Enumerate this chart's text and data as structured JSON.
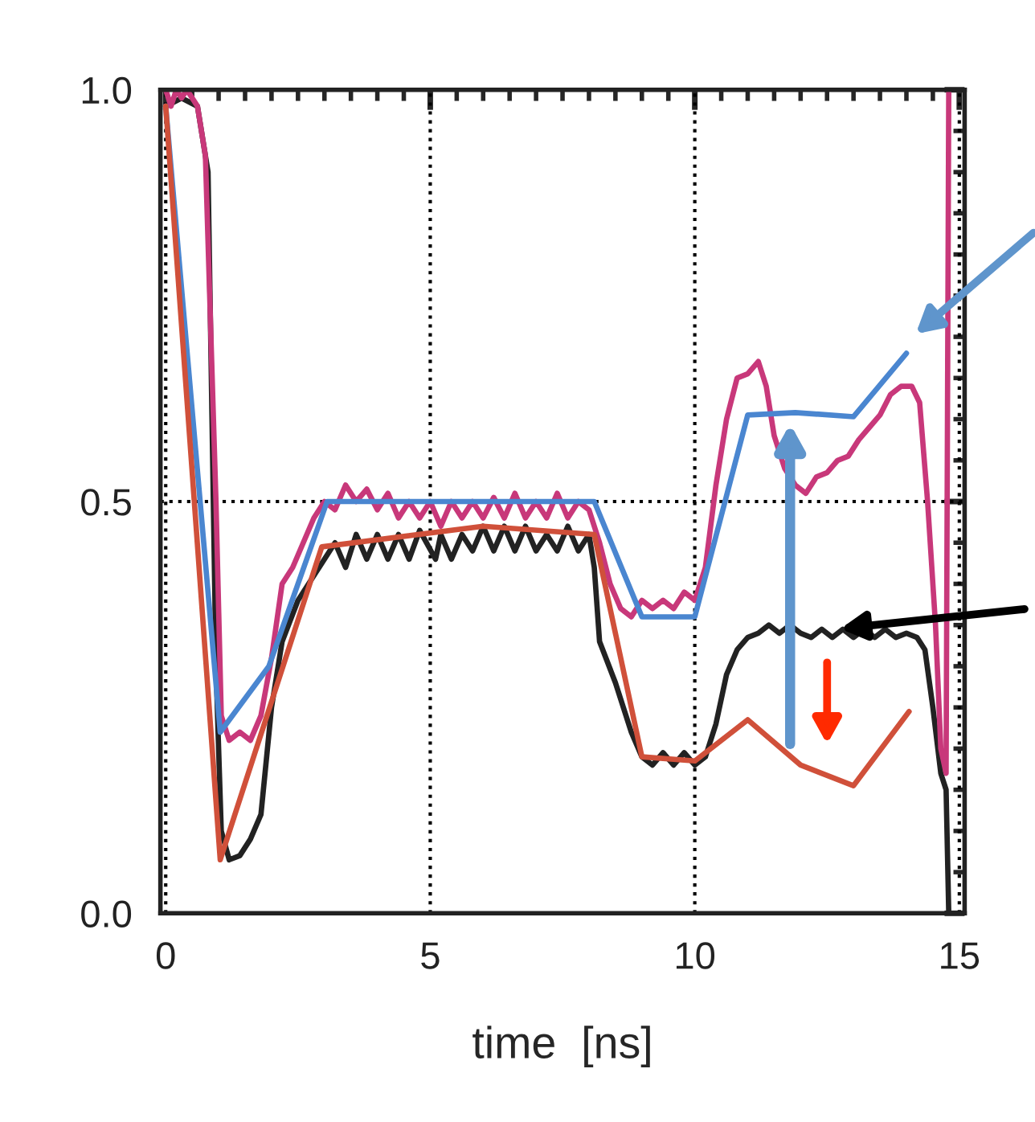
{
  "chart_data": {
    "type": "line",
    "xlabel": "time  [ns]",
    "xlim": [
      -0.1,
      15.1
    ],
    "ylim": [
      0,
      1.0
    ],
    "xticks": [
      0,
      5,
      10,
      15
    ],
    "yticks": [
      {
        "value": 0,
        "label": "0.0"
      },
      {
        "value": 0.5,
        "label": "0.5"
      },
      {
        "value": 1.0,
        "label": "1.0"
      }
    ],
    "grid": true,
    "line_style": "solid",
    "marker": "none",
    "series": [
      {
        "color": "#222222",
        "x": [
          0,
          0.3,
          0.6,
          0.8,
          0.95,
          1.05,
          1.2,
          1.4,
          1.6,
          1.8,
          2.0,
          2.2,
          2.5,
          2.8,
          3.0,
          3.2,
          3.4,
          3.6,
          3.8,
          4.0,
          4.2,
          4.4,
          4.6,
          4.8,
          5.1,
          5.2,
          5.4,
          5.6,
          5.8,
          6.0,
          6.2,
          6.4,
          6.6,
          6.8,
          7.0,
          7.2,
          7.4,
          7.6,
          7.8,
          8.0,
          8.1,
          8.2,
          8.5,
          8.8,
          9.0,
          9.2,
          9.4,
          9.6,
          9.8,
          10.0,
          10.2,
          10.4,
          10.6,
          10.8,
          11.0,
          11.2,
          11.4,
          11.6,
          11.8,
          12.0,
          12.2,
          12.4,
          12.6,
          12.8,
          13.0,
          13.2,
          13.4,
          13.6,
          13.8,
          14.0,
          14.2,
          14.35,
          14.5,
          14.65,
          14.75,
          14.8
        ],
        "values": [
          0.98,
          0.99,
          0.98,
          0.9,
          0.3,
          0.1,
          0.065,
          0.07,
          0.09,
          0.12,
          0.25,
          0.33,
          0.38,
          0.41,
          0.43,
          0.45,
          0.42,
          0.46,
          0.43,
          0.46,
          0.43,
          0.46,
          0.43,
          0.465,
          0.43,
          0.46,
          0.43,
          0.46,
          0.44,
          0.47,
          0.44,
          0.47,
          0.44,
          0.47,
          0.44,
          0.46,
          0.44,
          0.47,
          0.44,
          0.46,
          0.42,
          0.33,
          0.28,
          0.22,
          0.19,
          0.18,
          0.195,
          0.18,
          0.195,
          0.18,
          0.19,
          0.23,
          0.29,
          0.32,
          0.335,
          0.34,
          0.35,
          0.34,
          0.35,
          0.34,
          0.335,
          0.345,
          0.335,
          0.345,
          0.335,
          0.345,
          0.335,
          0.345,
          0.335,
          0.34,
          0.335,
          0.32,
          0.25,
          0.17,
          0.15,
          0.0
        ]
      },
      {
        "color": "#c8387a",
        "x": [
          0,
          0.1,
          0.2,
          0.3,
          0.4,
          0.6,
          0.75,
          0.95,
          1.05,
          1.2,
          1.4,
          1.6,
          1.8,
          2.0,
          2.2,
          2.4,
          2.6,
          2.8,
          3.0,
          3.2,
          3.4,
          3.6,
          3.8,
          4.0,
          4.2,
          4.4,
          4.6,
          4.8,
          5.0,
          5.2,
          5.4,
          5.6,
          5.8,
          6.0,
          6.2,
          6.4,
          6.6,
          6.8,
          7.0,
          7.2,
          7.4,
          7.6,
          7.8,
          8.0,
          8.2,
          8.4,
          8.6,
          8.8,
          9.0,
          9.2,
          9.4,
          9.6,
          9.8,
          10.0,
          10.2,
          10.4,
          10.6,
          10.8,
          11.0,
          11.2,
          11.35,
          11.5,
          11.7,
          11.9,
          12.1,
          12.3,
          12.5,
          12.7,
          12.9,
          13.1,
          13.3,
          13.5,
          13.7,
          13.9,
          14.1,
          14.25,
          14.4,
          14.55,
          14.65,
          14.75,
          14.8
        ],
        "values": [
          1.0,
          0.98,
          1.0,
          0.99,
          1.0,
          0.98,
          0.92,
          0.5,
          0.24,
          0.21,
          0.22,
          0.21,
          0.24,
          0.31,
          0.4,
          0.42,
          0.45,
          0.48,
          0.5,
          0.49,
          0.52,
          0.5,
          0.515,
          0.49,
          0.51,
          0.48,
          0.5,
          0.48,
          0.5,
          0.47,
          0.5,
          0.48,
          0.5,
          0.48,
          0.505,
          0.48,
          0.51,
          0.48,
          0.5,
          0.48,
          0.51,
          0.48,
          0.5,
          0.49,
          0.45,
          0.4,
          0.37,
          0.36,
          0.38,
          0.37,
          0.38,
          0.37,
          0.39,
          0.38,
          0.42,
          0.52,
          0.6,
          0.65,
          0.655,
          0.67,
          0.64,
          0.58,
          0.54,
          0.52,
          0.51,
          0.53,
          0.535,
          0.55,
          0.555,
          0.575,
          0.59,
          0.605,
          0.63,
          0.64,
          0.64,
          0.62,
          0.5,
          0.35,
          0.2,
          0.17,
          1.0
        ]
      },
      {
        "color": "#4a86d0",
        "x": [
          0,
          1.03,
          1.95,
          3.05,
          8.1,
          9.0,
          10.0,
          11.0,
          11.9,
          13.0,
          14.0
        ],
        "values": [
          0.98,
          0.22,
          0.3,
          0.5,
          0.5,
          0.36,
          0.36,
          0.605,
          0.608,
          0.603,
          0.68
        ]
      },
      {
        "color": "#d0503a",
        "x": [
          0,
          1.03,
          2.95,
          6.0,
          8.1,
          9.0,
          10.0,
          11.0,
          12.0,
          13.0,
          14.05
        ],
        "values": [
          0.98,
          0.065,
          0.445,
          0.47,
          0.46,
          0.19,
          0.185,
          0.235,
          0.18,
          0.155,
          0.245
        ]
      }
    ]
  }
}
